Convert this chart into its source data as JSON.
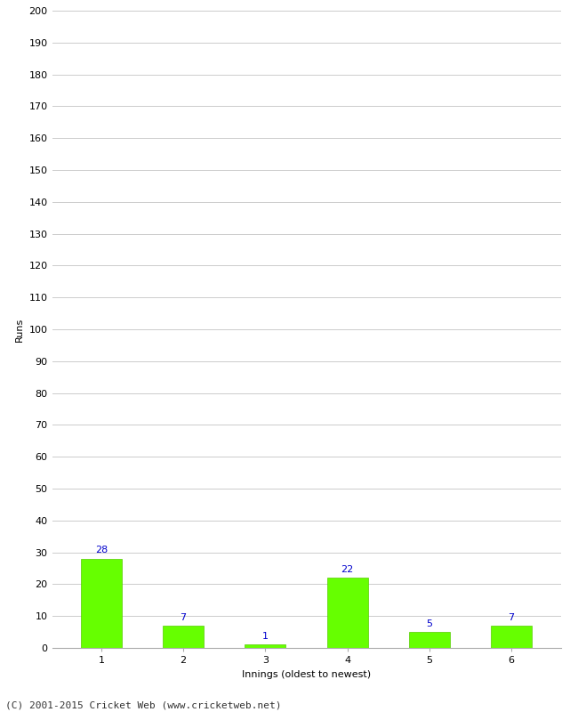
{
  "title": "",
  "categories": [
    "1",
    "2",
    "3",
    "4",
    "5",
    "6"
  ],
  "values": [
    28,
    7,
    1,
    22,
    5,
    7
  ],
  "bar_color": "#66ff00",
  "bar_edge_color": "#55cc00",
  "label_color": "#0000cc",
  "ylabel": "Runs",
  "xlabel": "Innings (oldest to newest)",
  "ylim": [
    0,
    200
  ],
  "yticks": [
    0,
    10,
    20,
    30,
    40,
    50,
    60,
    70,
    80,
    90,
    100,
    110,
    120,
    130,
    140,
    150,
    160,
    170,
    180,
    190,
    200
  ],
  "footer": "(C) 2001-2015 Cricket Web (www.cricketweb.net)",
  "background_color": "#ffffff",
  "grid_color": "#cccccc",
  "label_fontsize": 8,
  "axis_fontsize": 8,
  "footer_fontsize": 8,
  "bar_width": 0.5
}
